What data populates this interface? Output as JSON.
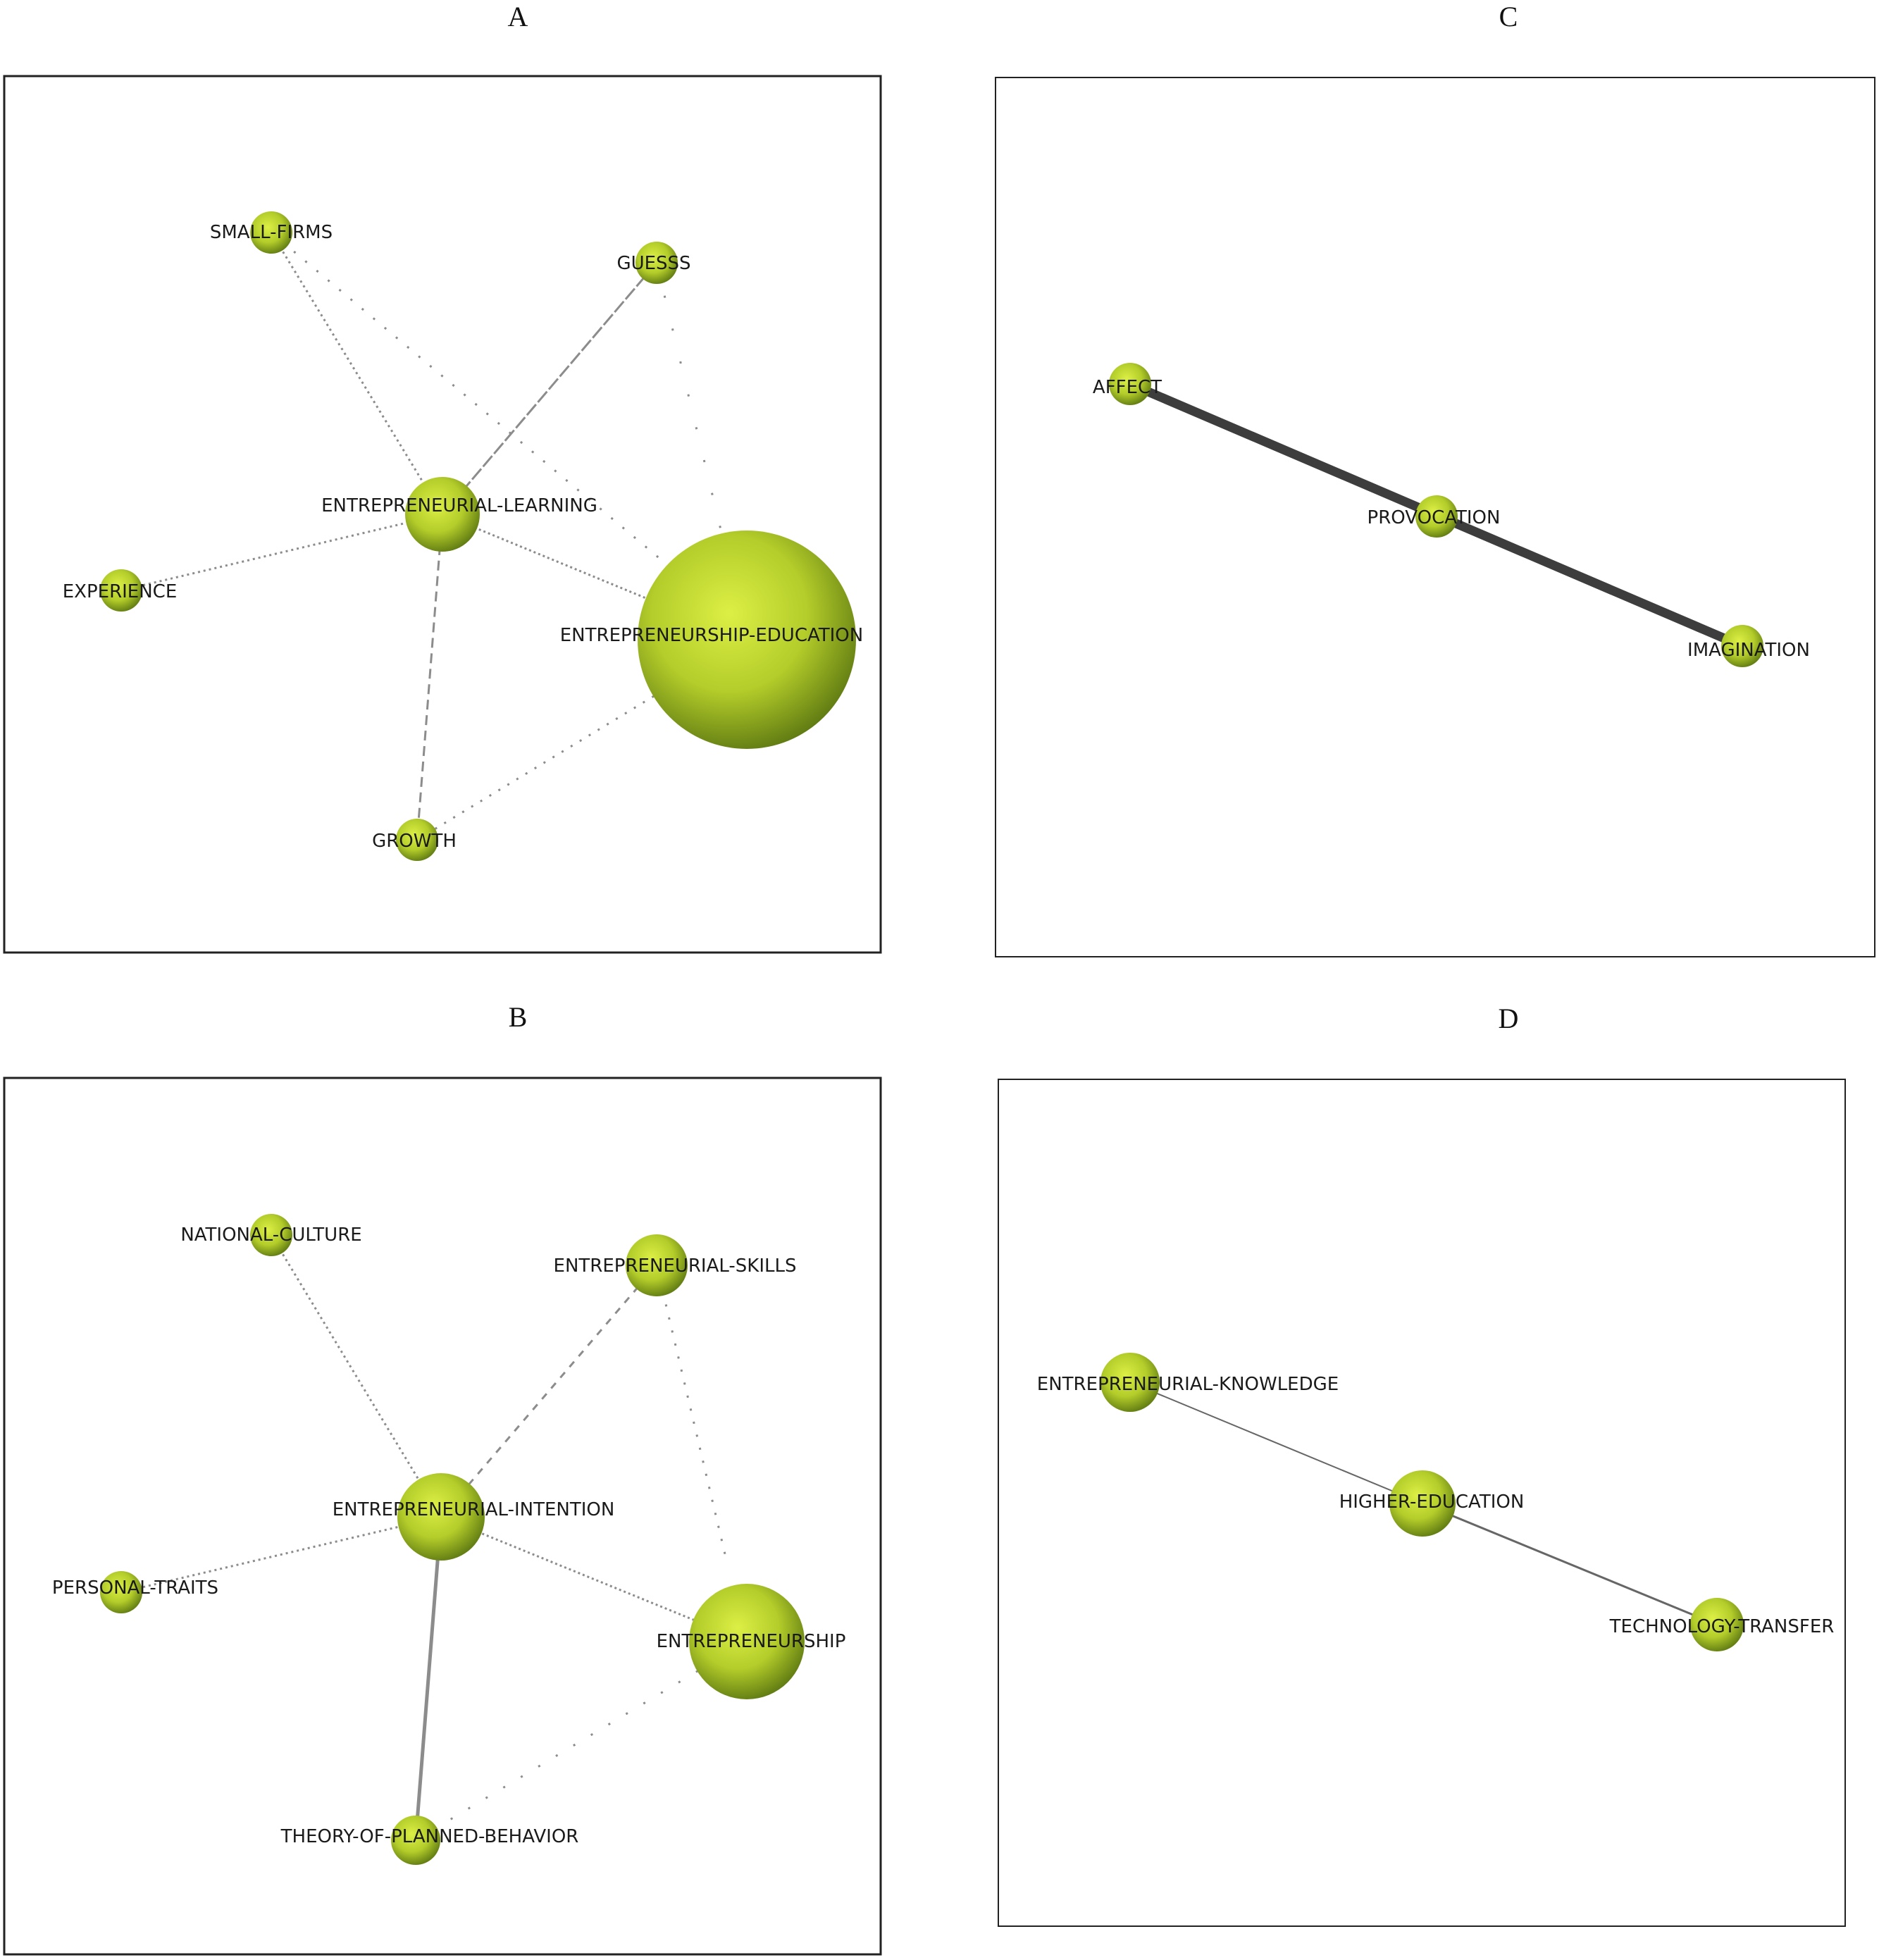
{
  "panels": {
    "A": {
      "title": "A",
      "nodes": {
        "small_firms": "SMALL-FIRMS",
        "guesss": "GUESSS",
        "entrepreneurial_learning": "ENTREPRENEURIAL-LEARNING",
        "experience": "EXPERIENCE",
        "entrepreneurship_education": "ENTREPRENEURSHIP-EDUCATION",
        "growth": "GROWTH"
      }
    },
    "B": {
      "title": "B",
      "nodes": {
        "national_culture": "NATIONAL-CULTURE",
        "entrepreneurial_skills": "ENTREPRENEURIAL-SKILLS",
        "entrepreneurial_intention": "ENTREPRENEURIAL-INTENTION",
        "personal_traits": "PERSONAL-TRAITS",
        "entrepreneurship": "ENTREPRENEURSHIP",
        "theory_of_planned_behavior": "THEORY-OF-PLANNED-BEHAVIOR"
      }
    },
    "C": {
      "title": "C",
      "nodes": {
        "affect": "AFFECT",
        "provocation": "PROVOCATION",
        "imagination": "IMAGINATION"
      }
    },
    "D": {
      "title": "D",
      "nodes": {
        "entrepreneurial_knowledge": "ENTREPRENEURIAL-KNOWLEDGE",
        "higher_education": "HIGHER-EDUCATION",
        "technology_transfer": "TECHNOLOGY-TRANSFER"
      }
    }
  },
  "colors": {
    "node_light": "#d6ea3c",
    "node_mid": "#a8c424",
    "node_dark": "#5f7a12",
    "edge": "#8c8c8c",
    "edge_strong": "#3d3d3d"
  }
}
